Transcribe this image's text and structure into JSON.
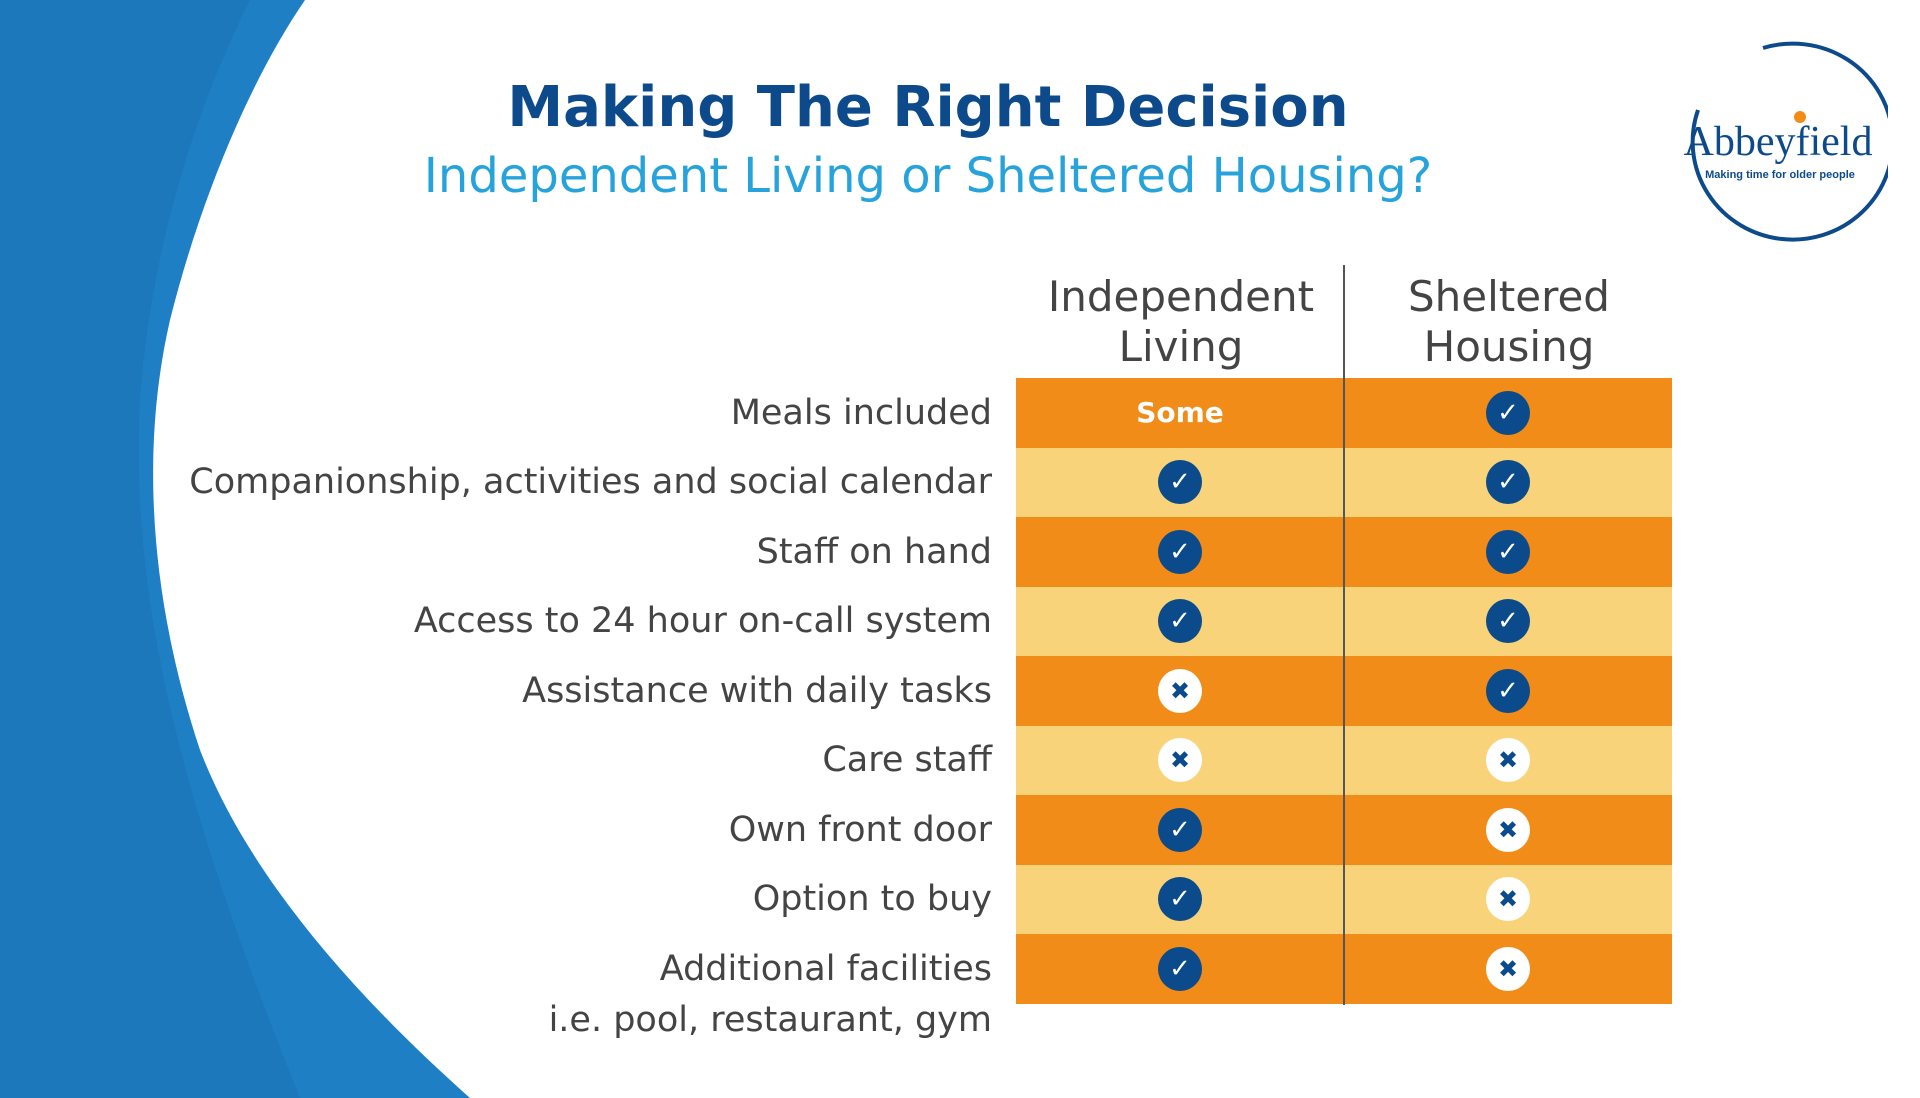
{
  "header": {
    "title": "Making The Right Decision",
    "subtitle": "Independent Living or Sheltered Housing?"
  },
  "logo": {
    "name": "Abbeyfield",
    "tagline": "Making time for older people"
  },
  "columns": [
    {
      "line1": "Independent",
      "line2": "Living"
    },
    {
      "line1": "Sheltered",
      "line2": "Housing"
    }
  ],
  "rows": [
    {
      "label": "Meals included",
      "independent": "Some",
      "sheltered": "yes"
    },
    {
      "label": "Companionship, activities and social calendar",
      "independent": "yes",
      "sheltered": "yes"
    },
    {
      "label": "Staff on hand",
      "independent": "yes",
      "sheltered": "yes"
    },
    {
      "label": "Access to 24 hour on-call system",
      "independent": "yes",
      "sheltered": "yes"
    },
    {
      "label": "Assistance with daily tasks",
      "independent": "no",
      "sheltered": "yes"
    },
    {
      "label": "Care staff",
      "independent": "no",
      "sheltered": "no"
    },
    {
      "label": "Own front door",
      "independent": "yes",
      "sheltered": "no"
    },
    {
      "label": "Option to buy",
      "independent": "yes",
      "sheltered": "no"
    },
    {
      "label": "Additional facilities",
      "independent": "yes",
      "sheltered": "no"
    }
  ],
  "footnote": "i.e. pool, restaurant, gym",
  "colors": {
    "dark_row": "#f28c18",
    "light_row": "#f8d37a",
    "navy": "#0b4a8b",
    "brush": "#1f7fc4"
  }
}
